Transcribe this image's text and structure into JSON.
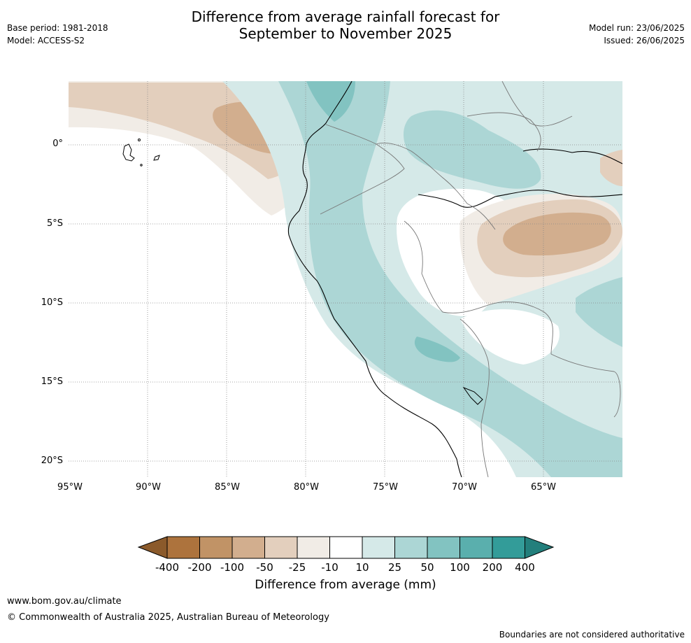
{
  "header": {
    "title_line1": "Difference from average rainfall forecast for",
    "title_line2": "September to November 2025",
    "base_period": "Base period: 1981-2018",
    "model": "Model: ACCESS-S2",
    "model_run": "Model run: 23/06/2025",
    "issued": "Issued: 26/06/2025"
  },
  "map": {
    "x_ticks": [
      "95°W",
      "90°W",
      "85°W",
      "80°W",
      "75°W",
      "70°W",
      "65°W"
    ],
    "y_ticks": [
      "0°",
      "5°S",
      "10°S",
      "15°S",
      "20°S"
    ],
    "extent": {
      "lon": [
        -95,
        -60
      ],
      "lat": [
        -21,
        4
      ]
    }
  },
  "colorbar": {
    "title": "Difference from average (mm)",
    "labels": [
      "-400",
      "-200",
      "-100",
      "-50",
      "-25",
      "-10",
      "10",
      "25",
      "50",
      "100",
      "200",
      "400"
    ],
    "colors": [
      "#8b5a2b",
      "#ad733d",
      "#c19366",
      "#d2ae8e",
      "#e3cfbd",
      "#f1ece6",
      "#ffffff",
      "#d5e9e8",
      "#acd6d5",
      "#82c3c1",
      "#5aafad",
      "#339c99",
      "#237f7c"
    ]
  },
  "footer": {
    "website": "www.bom.gov.au/climate",
    "copyright": "© Commonwealth of Australia 2025, Australian Bureau of Meteorology",
    "disclaimer": "Boundaries are not considered authoritative"
  }
}
